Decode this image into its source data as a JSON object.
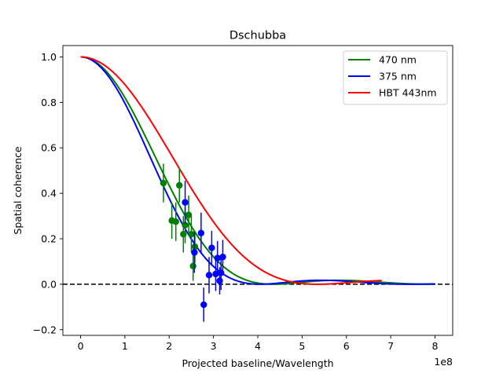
{
  "chart_data": {
    "type": "scatter",
    "title": "Dschubba",
    "xlabel": "Projected baseline/Wavelength",
    "ylabel": "Spatial coherence",
    "x_offset_label": "1e8",
    "xlim": [
      -0.4,
      8.4
    ],
    "ylim": [
      -0.225,
      1.05
    ],
    "x_ticks": [
      0,
      1,
      2,
      3,
      4,
      5,
      6,
      7,
      8
    ],
    "x_tick_labels": [
      "0",
      "1",
      "2",
      "3",
      "4",
      "5",
      "6",
      "7",
      "8"
    ],
    "y_ticks": [
      -0.2,
      0.0,
      0.2,
      0.4,
      0.6,
      0.8,
      1.0
    ],
    "y_tick_labels": [
      "−0.2",
      "0.0",
      "0.2",
      "0.4",
      "0.6",
      "0.8",
      "1.0"
    ],
    "grid": false,
    "legend_position": "top-right",
    "reference_line": {
      "y": 0,
      "style": "dashed",
      "color": "#000000"
    },
    "series": [
      {
        "name": "470 nm",
        "kind": "line+errorbar",
        "color": "#008000",
        "curve": {
          "x_max": 8.0,
          "first_zero": 4.35
        },
        "points": [
          {
            "x": 1.87,
            "y": 0.445,
            "err": 0.085
          },
          {
            "x": 2.06,
            "y": 0.28,
            "err": 0.08
          },
          {
            "x": 2.15,
            "y": 0.275,
            "err": 0.085
          },
          {
            "x": 2.23,
            "y": 0.435,
            "err": 0.075
          },
          {
            "x": 2.32,
            "y": 0.22,
            "err": 0.08
          },
          {
            "x": 2.36,
            "y": 0.26,
            "err": 0.08
          },
          {
            "x": 2.44,
            "y": 0.305,
            "err": 0.085
          },
          {
            "x": 2.5,
            "y": 0.22,
            "err": 0.08
          },
          {
            "x": 2.54,
            "y": 0.08,
            "err": 0.065
          },
          {
            "x": 2.58,
            "y": 0.165,
            "err": 0.07
          }
        ]
      },
      {
        "name": "375 nm",
        "kind": "line+errorbar",
        "color": "#0000ff",
        "curve": {
          "x_max": 8.0,
          "first_zero": 4.05
        },
        "points": [
          {
            "x": 2.36,
            "y": 0.36,
            "err": 0.095
          },
          {
            "x": 2.57,
            "y": 0.14,
            "err": 0.09
          },
          {
            "x": 2.72,
            "y": 0.225,
            "err": 0.09
          },
          {
            "x": 2.78,
            "y": -0.09,
            "err": 0.075
          },
          {
            "x": 2.9,
            "y": 0.04,
            "err": 0.08
          },
          {
            "x": 2.96,
            "y": 0.16,
            "err": 0.075
          },
          {
            "x": 3.05,
            "y": 0.045,
            "err": 0.075
          },
          {
            "x": 3.09,
            "y": 0.115,
            "err": 0.075
          },
          {
            "x": 3.14,
            "y": 0.015,
            "err": 0.06
          },
          {
            "x": 3.17,
            "y": 0.05,
            "err": 0.075
          },
          {
            "x": 3.21,
            "y": 0.12,
            "err": 0.075
          }
        ]
      },
      {
        "name": "HBT 443nm",
        "kind": "line",
        "color": "#ff0000",
        "curve": {
          "x_max": 6.8,
          "first_zero": 5.35
        }
      }
    ]
  }
}
